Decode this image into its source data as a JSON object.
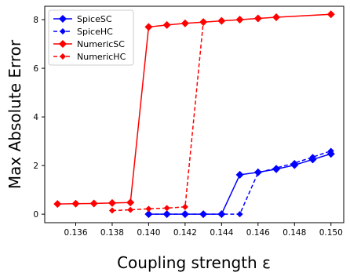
{
  "chart_data": {
    "type": "line",
    "title": "",
    "xlabel": "Coupling strength ε",
    "ylabel": "Max Absolute Error",
    "xlim": [
      0.1343,
      0.1507
    ],
    "ylim": [
      -0.35,
      8.55
    ],
    "xticks": [
      "0.136",
      "0.138",
      "0.140",
      "0.142",
      "0.144",
      "0.146",
      "0.148",
      "0.150"
    ],
    "xtick_values": [
      0.136,
      0.138,
      0.14,
      0.142,
      0.144,
      0.146,
      0.148,
      0.15
    ],
    "yticks": [
      "0",
      "2",
      "4",
      "6",
      "8"
    ],
    "ytick_values": [
      0,
      2,
      4,
      6,
      8
    ],
    "grid": false,
    "legend_position": "top-left",
    "series": [
      {
        "name": "SpiceSC",
        "color": "#0000ff",
        "linestyle": "solid",
        "x": [
          0.14,
          0.141,
          0.142,
          0.143,
          0.144,
          0.145,
          0.146,
          0.147,
          0.148,
          0.149,
          0.15
        ],
        "y": [
          0.0,
          0.0,
          0.0,
          0.0,
          0.0,
          1.62,
          1.72,
          1.85,
          2.02,
          2.25,
          2.48
        ]
      },
      {
        "name": "SpiceHC",
        "color": "#0000ff",
        "linestyle": "dashed",
        "x": [
          0.14,
          0.141,
          0.142,
          0.143,
          0.144,
          0.145,
          0.146,
          0.147,
          0.148,
          0.149,
          0.15
        ],
        "y": [
          0.0,
          0.0,
          0.0,
          0.0,
          0.0,
          0.0,
          1.7,
          1.9,
          2.1,
          2.35,
          2.6
        ]
      },
      {
        "name": "NumericSC",
        "color": "#ff0000",
        "linestyle": "solid",
        "x": [
          0.135,
          0.136,
          0.137,
          0.138,
          0.139,
          0.14,
          0.141,
          0.142,
          0.143,
          0.144,
          0.145,
          0.146,
          0.147,
          0.15
        ],
        "y": [
          0.42,
          0.43,
          0.44,
          0.46,
          0.48,
          7.7,
          7.78,
          7.85,
          7.9,
          7.95,
          8.0,
          8.05,
          8.1,
          8.22
        ]
      },
      {
        "name": "NumericHC",
        "color": "#ff0000",
        "linestyle": "dashed",
        "x": [
          0.138,
          0.139,
          0.14,
          0.141,
          0.142,
          0.143
        ],
        "y": [
          0.15,
          0.18,
          0.22,
          0.25,
          0.3,
          7.92
        ]
      }
    ]
  }
}
